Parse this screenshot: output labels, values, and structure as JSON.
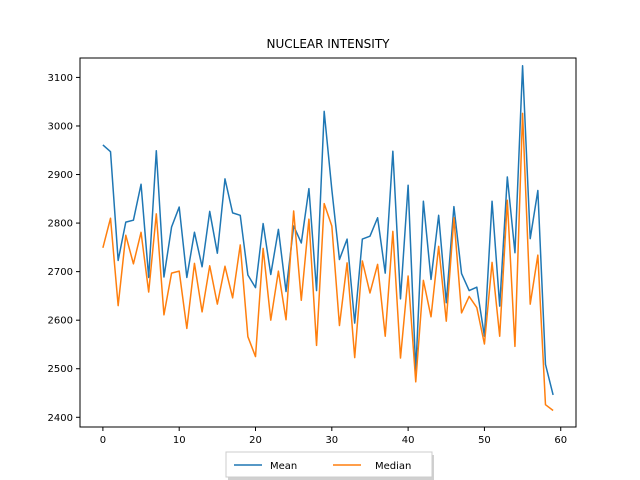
{
  "chart_data": {
    "type": "line",
    "title": "NUCLEAR INTENSITY",
    "xlabel": "",
    "ylabel": "",
    "xlim": [
      -3,
      62
    ],
    "ylim": [
      2380,
      3140
    ],
    "xticks": [
      0,
      10,
      20,
      30,
      40,
      50,
      60
    ],
    "yticks": [
      2400,
      2500,
      2600,
      2700,
      2800,
      2900,
      3000,
      3100
    ],
    "grid": false,
    "legend_position": "bottom-center",
    "x": [
      0,
      1,
      2,
      3,
      4,
      5,
      6,
      7,
      8,
      9,
      10,
      11,
      12,
      13,
      14,
      15,
      16,
      17,
      18,
      19,
      20,
      21,
      22,
      23,
      24,
      25,
      26,
      27,
      28,
      29,
      30,
      31,
      32,
      33,
      34,
      35,
      36,
      37,
      38,
      39,
      40,
      41,
      42,
      43,
      44,
      45,
      46,
      47,
      48,
      49,
      50,
      51,
      52,
      53,
      54,
      55,
      56,
      57,
      58,
      59
    ],
    "series": [
      {
        "name": "Mean",
        "color": "#1f77b4",
        "values": [
          2961,
          2947,
          2723,
          2802,
          2806,
          2880,
          2688,
          2949,
          2689,
          2792,
          2833,
          2688,
          2781,
          2710,
          2824,
          2738,
          2891,
          2821,
          2816,
          2693,
          2667,
          2799,
          2694,
          2787,
          2659,
          2794,
          2759,
          2871,
          2661,
          3030,
          2869,
          2725,
          2767,
          2594,
          2767,
          2773,
          2811,
          2697,
          2948,
          2644,
          2878,
          2495,
          2845,
          2684,
          2816,
          2636,
          2834,
          2696,
          2661,
          2668,
          2567,
          2845,
          2629,
          2895,
          2739,
          3124,
          2768,
          2867,
          2509,
          2446
        ]
      },
      {
        "name": "Median",
        "color": "#ff7f0e",
        "values": [
          2749,
          2810,
          2630,
          2775,
          2716,
          2781,
          2658,
          2819,
          2611,
          2697,
          2701,
          2583,
          2717,
          2617,
          2712,
          2633,
          2711,
          2646,
          2755,
          2566,
          2525,
          2748,
          2600,
          2701,
          2601,
          2825,
          2641,
          2808,
          2548,
          2840,
          2794,
          2589,
          2718,
          2523,
          2722,
          2656,
          2715,
          2567,
          2783,
          2522,
          2691,
          2473,
          2682,
          2607,
          2752,
          2598,
          2811,
          2615,
          2649,
          2626,
          2551,
          2719,
          2567,
          2847,
          2546,
          3026,
          2633,
          2734,
          2426,
          2414
        ]
      }
    ]
  }
}
